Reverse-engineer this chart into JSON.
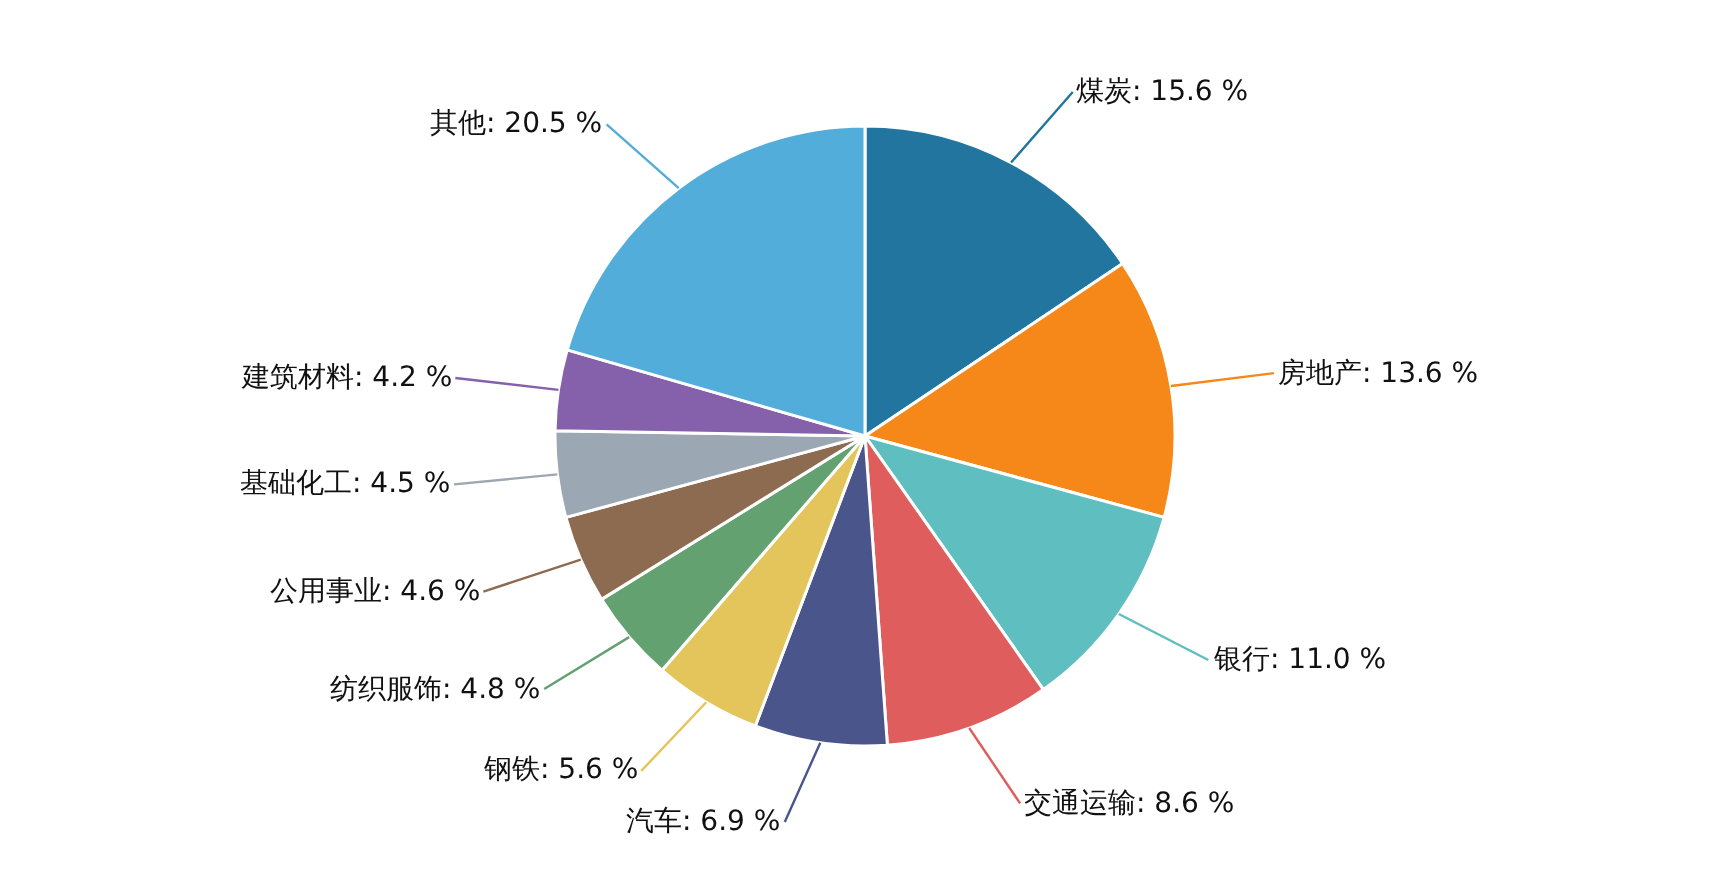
{
  "chart_data": {
    "type": "pie",
    "categories": [
      "煤炭",
      "房地产",
      "银行",
      "交通运输",
      "汽车",
      "钢铁",
      "纺织服饰",
      "公用事业",
      "基础化工",
      "建筑材料",
      "其他"
    ],
    "values": [
      15.6,
      13.6,
      11.0,
      8.6,
      6.9,
      5.6,
      4.8,
      4.6,
      4.5,
      4.2,
      20.5
    ],
    "value_labels": [
      "15.6 %",
      "13.6 %",
      "11.0 %",
      "8.6 %",
      "6.9 %",
      "5.6 %",
      "4.8 %",
      "4.6 %",
      "4.5 %",
      "4.2 %",
      "20.5 %"
    ],
    "colors": [
      "#22759f",
      "#f58819",
      "#5ebec0",
      "#e05d5d",
      "#4a568b",
      "#e3c55b",
      "#63a170",
      "#8d6b50",
      "#9ba7b2",
      "#8560ab",
      "#52addb"
    ]
  }
}
